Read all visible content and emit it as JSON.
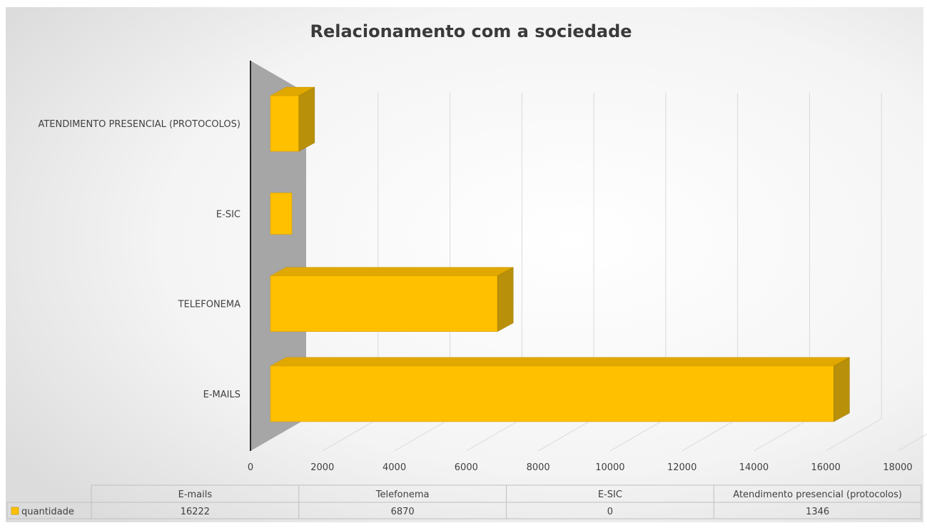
{
  "chart_data": {
    "type": "bar",
    "orientation": "horizontal",
    "three_d": true,
    "title": "Relacionamento com a sociedade",
    "categories": [
      "E-MAILS",
      "TELEFONEMA",
      "E-SIC",
      "ATENDIMENTO PRESENCIAL (PROTOCOLOS)"
    ],
    "series": [
      {
        "name": "quantidade",
        "values": [
          16222,
          6870,
          0,
          1346
        ]
      }
    ],
    "xlim": [
      0,
      18000
    ],
    "x_ticks": [
      "0",
      "2000",
      "4000",
      "6000",
      "8000",
      "10000",
      "12000",
      "14000",
      "16000",
      "18000"
    ],
    "grid": true,
    "colors": {
      "bar_front": "#FFC000",
      "bar_top": "#E0A800",
      "bar_side": "#B8900A",
      "wall": "#A6A6A6",
      "grid": "#D9D9D9"
    },
    "data_table": {
      "headers": [
        "E-mails",
        "Telefonema",
        "E-SIC",
        "Atendimento presencial (protocolos)"
      ],
      "row_label": "quantidade",
      "values": [
        "16222",
        "6870",
        "0",
        "1346"
      ]
    }
  }
}
